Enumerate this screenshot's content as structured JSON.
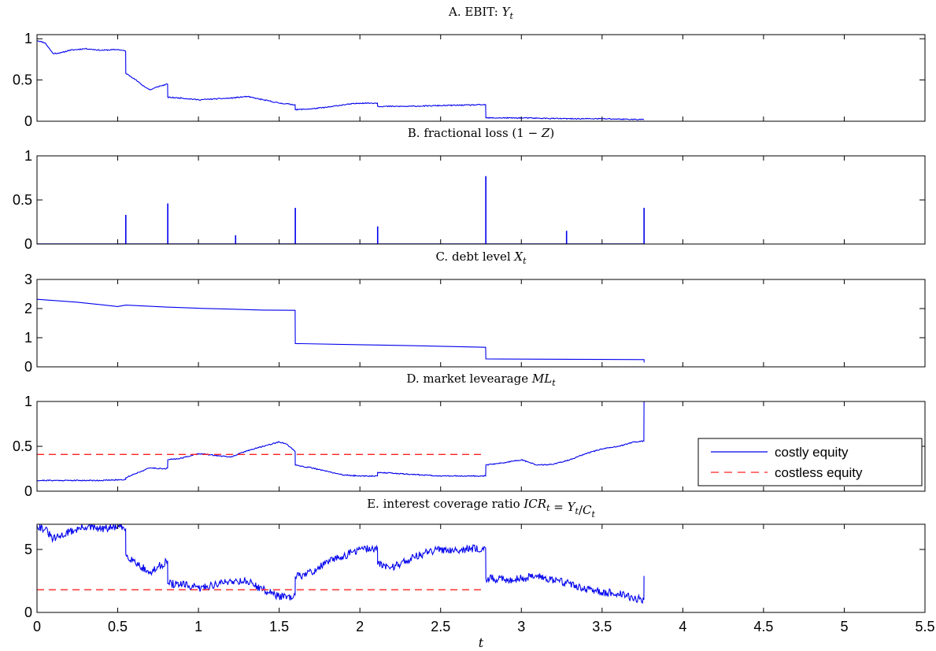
{
  "chart_data": [
    {
      "type": "line",
      "title": "A. EBIT: Y",
      "title_parts": {
        "prefix": "A. EBIT: ",
        "var": "Y",
        "sub": "t"
      },
      "xlim": [
        0,
        5.5
      ],
      "ylim": [
        0,
        1.05
      ],
      "yticks": [
        0,
        0.5,
        1
      ],
      "ytick_labels": [
        "0",
        "0.5",
        "1"
      ],
      "series": [
        {
          "color": "#0000ee",
          "noise": 0.012,
          "seed": 11,
          "points": [
            [
              0,
              0.98
            ],
            [
              0.05,
              0.95
            ],
            [
              0.1,
              0.82
            ],
            [
              0.15,
              0.83
            ],
            [
              0.2,
              0.86
            ],
            [
              0.3,
              0.88
            ],
            [
              0.4,
              0.86
            ],
            [
              0.5,
              0.87
            ],
            [
              0.549,
              0.85
            ],
            [
              0.55,
              0.58
            ],
            [
              0.6,
              0.52
            ],
            [
              0.65,
              0.44
            ],
            [
              0.7,
              0.38
            ],
            [
              0.75,
              0.42
            ],
            [
              0.809,
              0.45
            ],
            [
              0.81,
              0.29
            ],
            [
              0.9,
              0.28
            ],
            [
              1.0,
              0.26
            ],
            [
              1.1,
              0.27
            ],
            [
              1.2,
              0.28
            ],
            [
              1.3,
              0.3
            ],
            [
              1.4,
              0.26
            ],
            [
              1.5,
              0.22
            ],
            [
              1.599,
              0.2
            ],
            [
              1.6,
              0.14
            ],
            [
              1.7,
              0.15
            ],
            [
              1.8,
              0.17
            ],
            [
              1.9,
              0.2
            ],
            [
              2.0,
              0.22
            ],
            [
              2.109,
              0.22
            ],
            [
              2.11,
              0.18
            ],
            [
              2.3,
              0.18
            ],
            [
              2.5,
              0.19
            ],
            [
              2.779,
              0.2
            ],
            [
              2.78,
              0.04
            ],
            [
              3.0,
              0.04
            ],
            [
              3.3,
              0.03
            ],
            [
              3.5,
              0.03
            ],
            [
              3.76,
              0.02
            ]
          ]
        }
      ]
    },
    {
      "type": "bar",
      "title": "B. fractional loss (1 − Z)",
      "title_parts": {
        "prefix": "B. fractional loss ",
        "expr_open": "(1 − ",
        "var": "Z",
        "expr_close": ")"
      },
      "xlim": [
        0,
        5.5
      ],
      "ylim": [
        0,
        1
      ],
      "yticks": [
        0,
        0.5,
        1
      ],
      "ytick_labels": [
        "0",
        "0.5",
        "1"
      ],
      "spikes": {
        "x": [
          0.55,
          0.81,
          1.23,
          1.6,
          2.11,
          2.78,
          3.28,
          3.76
        ],
        "values": [
          0.33,
          0.46,
          0.1,
          0.41,
          0.2,
          0.77,
          0.15,
          0.41
        ],
        "xmax": 3.76
      },
      "series": [
        {
          "color": "#0000ee"
        }
      ]
    },
    {
      "type": "line",
      "title": "C. debt level X",
      "title_parts": {
        "prefix": "C. debt level ",
        "var": "X",
        "sub": "t"
      },
      "xlim": [
        0,
        5.5
      ],
      "ylim": [
        0,
        3
      ],
      "yticks": [
        0,
        1,
        2,
        3
      ],
      "ytick_labels": [
        "0",
        "1",
        "2",
        "3"
      ],
      "series": [
        {
          "color": "#0000ee",
          "noise": 0,
          "seed": 3,
          "points": [
            [
              0,
              2.32
            ],
            [
              0.25,
              2.22
            ],
            [
              0.5,
              2.07
            ],
            [
              0.55,
              2.12
            ],
            [
              0.8,
              2.05
            ],
            [
              1.0,
              2.01
            ],
            [
              1.2,
              1.98
            ],
            [
              1.4,
              1.95
            ],
            [
              1.599,
              1.94
            ],
            [
              1.6,
              0.8
            ],
            [
              2.0,
              0.76
            ],
            [
              2.4,
              0.72
            ],
            [
              2.779,
              0.67
            ],
            [
              2.78,
              0.27
            ],
            [
              3.3,
              0.26
            ],
            [
              3.76,
              0.25
            ],
            [
              3.761,
              0.15
            ]
          ]
        }
      ]
    },
    {
      "type": "line",
      "title": "D. market levearage ML",
      "title_parts": {
        "prefix": "D. market levearage ",
        "var": "ML",
        "sub": "t"
      },
      "xlim": [
        0,
        5.5
      ],
      "ylim": [
        0,
        1
      ],
      "yticks": [
        0,
        0.5,
        1
      ],
      "ytick_labels": [
        "0",
        "0.5",
        "1"
      ],
      "legend": {
        "position": "right",
        "entries": [
          {
            "label": "costly equity",
            "color": "#0000ee",
            "dash": false
          },
          {
            "label": "costless equity",
            "color": "#ff2020",
            "dash": true
          }
        ]
      },
      "series": [
        {
          "name": "costly equity",
          "color": "#0000ee",
          "noise": 0.012,
          "seed": 21,
          "points": [
            [
              0,
              0.12
            ],
            [
              0.2,
              0.12
            ],
            [
              0.4,
              0.12
            ],
            [
              0.549,
              0.13
            ],
            [
              0.55,
              0.15
            ],
            [
              0.6,
              0.19
            ],
            [
              0.7,
              0.26
            ],
            [
              0.8,
              0.25
            ],
            [
              0.809,
              0.26
            ],
            [
              0.81,
              0.35
            ],
            [
              0.9,
              0.37
            ],
            [
              1.0,
              0.42
            ],
            [
              1.1,
              0.4
            ],
            [
              1.2,
              0.38
            ],
            [
              1.3,
              0.45
            ],
            [
              1.4,
              0.5
            ],
            [
              1.5,
              0.55
            ],
            [
              1.55,
              0.52
            ],
            [
              1.599,
              0.44
            ],
            [
              1.6,
              0.29
            ],
            [
              1.7,
              0.26
            ],
            [
              1.8,
              0.22
            ],
            [
              1.9,
              0.18
            ],
            [
              2.0,
              0.17
            ],
            [
              2.109,
              0.17
            ],
            [
              2.11,
              0.21
            ],
            [
              2.3,
              0.19
            ],
            [
              2.5,
              0.17
            ],
            [
              2.779,
              0.17
            ],
            [
              2.78,
              0.29
            ],
            [
              2.9,
              0.32
            ],
            [
              3.0,
              0.35
            ],
            [
              3.1,
              0.29
            ],
            [
              3.2,
              0.3
            ],
            [
              3.3,
              0.35
            ],
            [
              3.4,
              0.42
            ],
            [
              3.5,
              0.47
            ],
            [
              3.6,
              0.5
            ],
            [
              3.7,
              0.55
            ],
            [
              3.759,
              0.56
            ],
            [
              3.76,
              1.0
            ]
          ]
        },
        {
          "name": "costless equity",
          "color": "#ff2020",
          "dash": true,
          "noise": 0,
          "points": [
            [
              0,
              0.41
            ],
            [
              2.77,
              0.41
            ]
          ]
        }
      ]
    },
    {
      "type": "line",
      "title": "E. interest coverage ratio ICR = Y/C",
      "title_parts": {
        "prefix": "E. interest coverage ratio ",
        "var": "ICR",
        "sub": "t",
        "eq": " = ",
        "var2": "Y",
        "sub2": "t",
        "slash": "/",
        "var3": "C",
        "sub3": "t"
      },
      "xlim": [
        0,
        5.5
      ],
      "ylim": [
        0,
        7
      ],
      "yticks": [
        0,
        5
      ],
      "ytick_labels": [
        "0",
        "5"
      ],
      "xticks": [
        0,
        0.5,
        1,
        1.5,
        2,
        2.5,
        3,
        3.5,
        4,
        4.5,
        5,
        5.5
      ],
      "xtick_labels": [
        "0",
        "0.5",
        "1",
        "1.5",
        "2",
        "2.5",
        "3",
        "3.5",
        "4",
        "4.5",
        "5",
        "5.5"
      ],
      "xlabel": "t",
      "series": [
        {
          "name": "costly equity",
          "color": "#0000ee",
          "noise": 0.09,
          "seed": 31,
          "points": [
            [
              0,
              6.9
            ],
            [
              0.05,
              6.6
            ],
            [
              0.1,
              5.8
            ],
            [
              0.2,
              6.4
            ],
            [
              0.3,
              6.8
            ],
            [
              0.4,
              6.6
            ],
            [
              0.5,
              6.8
            ],
            [
              0.549,
              6.6
            ],
            [
              0.55,
              4.6
            ],
            [
              0.6,
              4.1
            ],
            [
              0.65,
              3.6
            ],
            [
              0.7,
              3.1
            ],
            [
              0.75,
              3.6
            ],
            [
              0.809,
              4.1
            ],
            [
              0.81,
              2.3
            ],
            [
              0.9,
              2.2
            ],
            [
              1.0,
              1.9
            ],
            [
              1.1,
              2.2
            ],
            [
              1.2,
              2.5
            ],
            [
              1.3,
              2.5
            ],
            [
              1.4,
              1.8
            ],
            [
              1.5,
              1.3
            ],
            [
              1.58,
              1.1
            ],
            [
              1.599,
              1.4
            ],
            [
              1.6,
              2.8
            ],
            [
              1.7,
              3.2
            ],
            [
              1.8,
              4.0
            ],
            [
              1.9,
              4.5
            ],
            [
              2.0,
              5.0
            ],
            [
              2.109,
              5.1
            ],
            [
              2.11,
              3.8
            ],
            [
              2.2,
              3.6
            ],
            [
              2.3,
              4.2
            ],
            [
              2.4,
              4.7
            ],
            [
              2.5,
              5.0
            ],
            [
              2.6,
              5.0
            ],
            [
              2.779,
              5.1
            ],
            [
              2.78,
              2.7
            ],
            [
              2.9,
              2.6
            ],
            [
              3.0,
              2.7
            ],
            [
              3.1,
              2.9
            ],
            [
              3.2,
              2.6
            ],
            [
              3.3,
              2.3
            ],
            [
              3.4,
              1.8
            ],
            [
              3.5,
              1.6
            ],
            [
              3.6,
              1.5
            ],
            [
              3.7,
              1.1
            ],
            [
              3.759,
              1.0
            ],
            [
              3.76,
              2.9
            ]
          ]
        },
        {
          "name": "costless equity",
          "color": "#ff2020",
          "dash": true,
          "noise": 0,
          "points": [
            [
              0,
              1.8
            ],
            [
              2.77,
              1.8
            ]
          ]
        }
      ]
    }
  ]
}
